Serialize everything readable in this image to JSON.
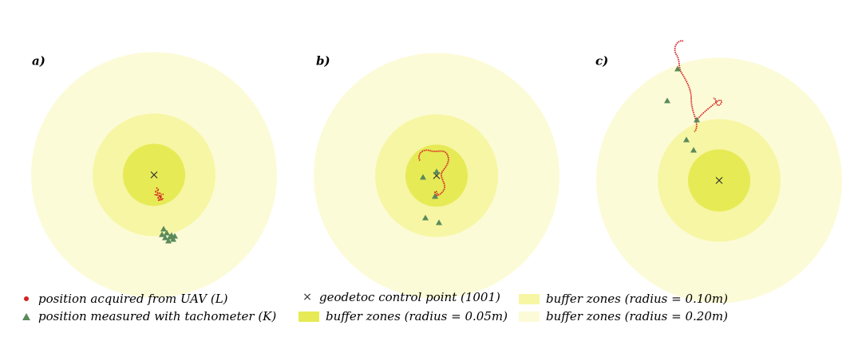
{
  "panels": [
    {
      "label": "a)"
    },
    {
      "label": "b)"
    },
    {
      "label": "c)"
    }
  ],
  "colors": {
    "uav": "#d42020",
    "tacho": "#5a8a5a",
    "buffer_005": "#e6ea55",
    "buffer_010": "#f7f6a4",
    "buffer_020": "#fcfbd7",
    "control_point": "#333333"
  },
  "legend": {
    "uav": "position acquired from UAV (L)",
    "tacho": "position measured with tachometer (K)",
    "control": "geodetoc control point (1001)",
    "buffer_005": "buffer zones (radius = 0.05m)",
    "buffer_010": "buffer zones (radius = 0.10m)",
    "buffer_020": "buffer zones (radius = 0.20m)"
  }
}
